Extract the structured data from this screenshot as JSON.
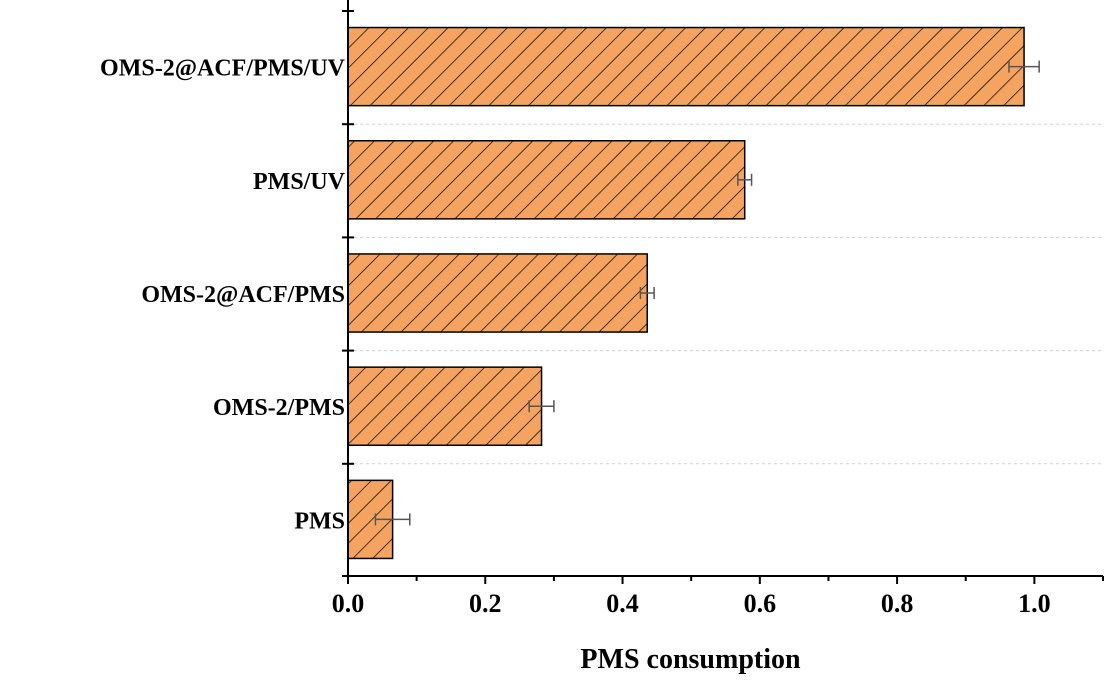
{
  "chart_data": {
    "type": "bar",
    "orientation": "horizontal",
    "categories": [
      "OMS-2@ACF/PMS/UV",
      "PMS/UV",
      "OMS-2@ACF/PMS",
      "OMS-2/PMS",
      "PMS"
    ],
    "values": [
      0.985,
      0.578,
      0.436,
      0.282,
      0.065
    ],
    "errors": [
      0.022,
      0.01,
      0.01,
      0.018,
      0.025
    ],
    "x_ticks": [
      "0.0",
      "0.2",
      "0.4",
      "0.6",
      "0.8",
      "1.0"
    ],
    "xlim": [
      0,
      1.1
    ],
    "xlabel": "PMS consumption",
    "ylabel": "",
    "grid": "horizontal dashed",
    "colors": {
      "bar_fill": "#f4a460",
      "bar_hatch": "#000000",
      "error_bar": "#555555"
    }
  }
}
